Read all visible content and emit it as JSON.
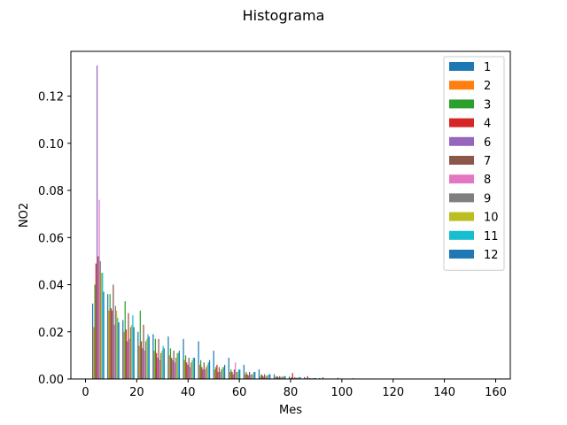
{
  "chart_data": {
    "type": "bar",
    "title": "Histograma",
    "xlabel": "Mes",
    "ylabel": "NO2",
    "xlim": [
      -5.7,
      165.7
    ],
    "ylim": [
      0,
      0.139
    ],
    "xticks": [
      0,
      20,
      40,
      60,
      80,
      100,
      120,
      140,
      160
    ],
    "yticks": [
      0.0,
      0.02,
      0.04,
      0.06,
      0.08,
      0.1,
      0.12
    ],
    "ytick_labels": [
      "0.00",
      "0.02",
      "0.04",
      "0.06",
      "0.08",
      "0.10",
      "0.12"
    ],
    "grid": false,
    "legend_position": "top-right",
    "bin_edges": [
      2.0,
      7.9,
      13.8,
      19.7,
      25.6,
      31.5,
      37.4,
      43.3,
      49.2,
      55.1,
      61.0,
      66.9,
      72.8,
      78.7,
      84.6,
      90.5,
      96.4,
      102.3,
      108.2,
      114.1,
      120.0,
      125.9
    ],
    "series": [
      {
        "name": "1",
        "color": "#1f77b4",
        "values": [
          0.032,
          0.036,
          0.025,
          0.02,
          0.019,
          0.018,
          0.017,
          0.016,
          0.012,
          0.009,
          0.006,
          0.004,
          0.002,
          0.001,
          0.0008,
          0.0004,
          0.0002,
          0.0001,
          0,
          0,
          0
        ]
      },
      {
        "name": "2",
        "color": "#ff7f0e",
        "values": [
          0.022,
          0.029,
          0.02,
          0.014,
          0.012,
          0.01,
          0.008,
          0.006,
          0.004,
          0.003,
          0.002,
          0.001,
          0.0007,
          0.0003,
          0.0002,
          0.0001,
          0,
          0,
          0,
          0,
          0
        ]
      },
      {
        "name": "3",
        "color": "#2ca02c",
        "values": [
          0.04,
          0.036,
          0.033,
          0.029,
          0.017,
          0.013,
          0.01,
          0.008,
          0.005,
          0.004,
          0.003,
          0.002,
          0.0012,
          0.0008,
          0.0004,
          0.0002,
          0.0001,
          0,
          0,
          0,
          0
        ]
      },
      {
        "name": "4",
        "color": "#d62728",
        "values": [
          0.049,
          0.03,
          0.021,
          0.016,
          0.011,
          0.009,
          0.007,
          0.005,
          0.006,
          0.003,
          0.002,
          0.0015,
          0.001,
          0.0025,
          0.0012,
          0.0007,
          0.0005,
          0.0003,
          0.0002,
          0.0001,
          0.0001
        ]
      },
      {
        "name": "6",
        "color": "#9467bd",
        "values": [
          0.133,
          0.029,
          0.016,
          0.013,
          0.009,
          0.008,
          0.006,
          0.004,
          0.003,
          0.002,
          0.0015,
          0.001,
          0.0006,
          0.0003,
          0.0002,
          0.0001,
          0,
          0,
          0,
          0,
          0
        ]
      },
      {
        "name": "7",
        "color": "#8c564b",
        "values": [
          0.052,
          0.04,
          0.028,
          0.023,
          0.017,
          0.012,
          0.009,
          0.007,
          0.005,
          0.004,
          0.003,
          0.002,
          0.0012,
          0.0008,
          0.0004,
          0.0002,
          0.0001,
          0,
          0,
          0,
          0
        ]
      },
      {
        "name": "8",
        "color": "#e377c2",
        "values": [
          0.076,
          0.023,
          0.017,
          0.012,
          0.008,
          0.007,
          0.005,
          0.004,
          0.003,
          0.007,
          0.002,
          0.001,
          0.0007,
          0.0004,
          0.0002,
          0.0001,
          0,
          0,
          0,
          0,
          0
        ]
      },
      {
        "name": "9",
        "color": "#7f7f7f",
        "values": [
          0.05,
          0.031,
          0.022,
          0.016,
          0.011,
          0.009,
          0.007,
          0.005,
          0.004,
          0.003,
          0.002,
          0.0015,
          0.001,
          0.0006,
          0.0003,
          0.0002,
          0.0001,
          0,
          0,
          0,
          0
        ]
      },
      {
        "name": "10",
        "color": "#bcbd22",
        "values": [
          0.045,
          0.029,
          0.023,
          0.017,
          0.012,
          0.011,
          0.008,
          0.006,
          0.005,
          0.003,
          0.002,
          0.0015,
          0.001,
          0.0006,
          0.0003,
          0.0002,
          0.0001,
          0,
          0,
          0,
          0
        ]
      },
      {
        "name": "11",
        "color": "#17becf",
        "values": [
          0.045,
          0.026,
          0.027,
          0.019,
          0.014,
          0.011,
          0.009,
          0.007,
          0.005,
          0.004,
          0.003,
          0.002,
          0.0012,
          0.0008,
          0.0004,
          0.0002,
          0.0001,
          0,
          0,
          0,
          0
        ]
      },
      {
        "name": "12",
        "color": "#1f77b4",
        "values": [
          0.037,
          0.024,
          0.022,
          0.018,
          0.013,
          0.012,
          0.009,
          0.008,
          0.006,
          0.004,
          0.003,
          0.002,
          0.0012,
          0.0008,
          0.0004,
          0.0002,
          0.0001,
          0,
          0,
          0,
          0
        ]
      }
    ]
  }
}
